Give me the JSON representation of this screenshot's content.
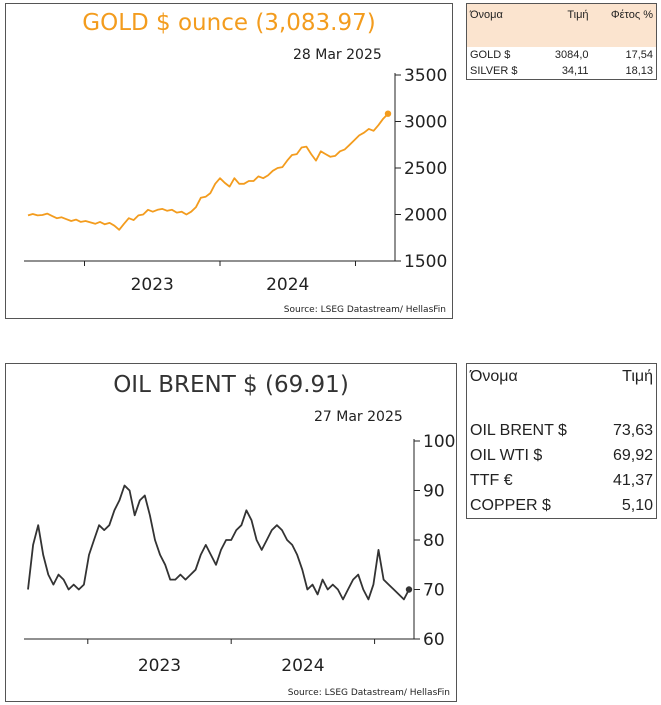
{
  "gold_chart": {
    "title": "GOLD $ ounce (3,083.97)",
    "date": "28 Mar 2025",
    "source": "Source: LSEG Datastream/ HellasFin",
    "line_color": "#f39c1e"
  },
  "oil_chart": {
    "title": "OIL BRENT $ (69.91)",
    "date": "27 Mar 2025",
    "source": "Source: LSEG Datastream/ HellasFin",
    "line_color": "#333333"
  },
  "metals_table": {
    "headers": [
      "Όνομα",
      "Τιμή",
      "Φέτος %"
    ],
    "header_bg": "#fbe4cf",
    "rows": [
      [
        "GOLD $",
        "3084,0",
        "17,54"
      ],
      [
        "SILVER $",
        "34,11",
        "18,13"
      ]
    ]
  },
  "energy_table": {
    "headers": [
      "Όνομα",
      "Τιμή"
    ],
    "rows": [
      [
        "OIL BRENT $",
        "73,63"
      ],
      [
        "OIL WTI $",
        "69,92"
      ],
      [
        "TTF €",
        "41,37"
      ],
      [
        "COPPER $",
        "5,10"
      ]
    ]
  },
  "chart_data": [
    {
      "type": "line",
      "title": "GOLD $ ounce (3,083.97)",
      "xlabel": "",
      "ylabel": "",
      "x_start": 2022.583,
      "x_end": 2025.24,
      "x_ticks": [
        2023,
        2024,
        2025
      ],
      "x_tick_labels": [
        "2023",
        "2024"
      ],
      "ylim": [
        1500,
        3500
      ],
      "y_ticks": [
        1500,
        2000,
        2500,
        3000,
        3500
      ],
      "grid": false,
      "series": [
        {
          "values": [
            1990,
            2005,
            1990,
            1995,
            2010,
            1985,
            1960,
            1970,
            1950,
            1930,
            1945,
            1920,
            1930,
            1915,
            1900,
            1920,
            1895,
            1910,
            1880,
            1835,
            1900,
            1960,
            1940,
            1990,
            2000,
            2050,
            2030,
            2050,
            2060,
            2040,
            2050,
            2020,
            2030,
            2000,
            2030,
            2080,
            2180,
            2190,
            2230,
            2330,
            2390,
            2340,
            2300,
            2390,
            2330,
            2330,
            2360,
            2360,
            2410,
            2390,
            2420,
            2470,
            2500,
            2510,
            2580,
            2640,
            2650,
            2720,
            2730,
            2650,
            2580,
            2680,
            2650,
            2620,
            2630,
            2680,
            2700,
            2750,
            2800,
            2850,
            2880,
            2920,
            2900,
            2960,
            3030,
            3084
          ]
        }
      ],
      "end_marker": 3084
    },
    {
      "type": "line",
      "title": "OIL BRENT $ (69.91)",
      "xlabel": "",
      "ylabel": "",
      "x_start": 2022.583,
      "x_end": 2025.24,
      "x_ticks": [
        2023,
        2024,
        2025
      ],
      "x_tick_labels": [
        "2023",
        "2024"
      ],
      "ylim": [
        60,
        100
      ],
      "y_ticks": [
        60,
        70,
        80,
        90,
        100
      ],
      "grid": false,
      "series": [
        {
          "values": [
            70,
            79,
            83,
            77,
            73,
            71,
            73,
            72,
            70,
            71,
            70,
            71,
            77,
            80,
            83,
            82,
            83,
            86,
            88,
            91,
            90,
            85,
            88,
            89,
            85,
            80,
            77,
            75,
            72,
            72,
            73,
            72,
            73,
            74,
            77,
            79,
            77,
            75,
            78,
            80,
            80,
            82,
            83,
            86,
            84,
            80,
            78,
            80,
            82,
            83,
            82,
            80,
            79,
            77,
            74,
            70,
            71,
            69,
            72,
            70,
            71,
            70,
            68,
            70,
            72,
            73,
            70,
            68,
            71,
            78,
            72,
            71,
            70,
            69,
            68,
            70
          ]
        }
      ],
      "end_marker": 70
    }
  ]
}
